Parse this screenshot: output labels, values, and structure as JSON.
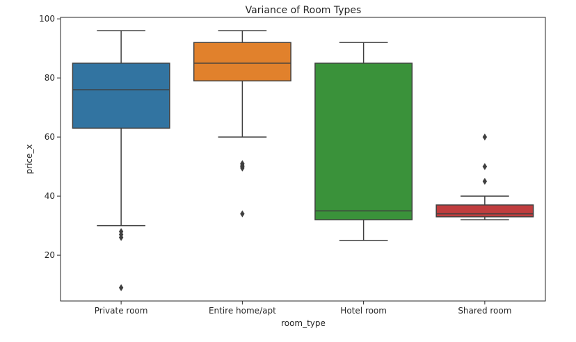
{
  "chart_data": {
    "type": "box",
    "title": "Variance of Room Types",
    "xlabel": "room_type",
    "ylabel": "price_x",
    "ylim": [
      4.5,
      100.5
    ],
    "yticks": [
      20,
      40,
      60,
      80,
      100
    ],
    "grid": false,
    "categories": [
      "Private room",
      "Entire home/apt",
      "Hotel room",
      "Shared room"
    ],
    "series": [
      {
        "category": "Private room",
        "color": "#3274a1",
        "whisker_low": 30,
        "q1": 63,
        "median": 76,
        "q3": 85,
        "whisker_high": 96,
        "outliers": [
          28,
          27,
          26,
          9
        ]
      },
      {
        "category": "Entire home/apt",
        "color": "#e1812c",
        "whisker_low": 60,
        "q1": 79,
        "median": 85,
        "q3": 92,
        "whisker_high": 96,
        "outliers": [
          51,
          50.5,
          50,
          49.5,
          34
        ]
      },
      {
        "category": "Hotel room",
        "color": "#3a923a",
        "whisker_low": 25,
        "q1": 32,
        "median": 35,
        "q3": 85,
        "whisker_high": 92,
        "outliers": []
      },
      {
        "category": "Shared room",
        "color": "#c03d3e",
        "whisker_low": 32,
        "q1": 33,
        "median": 34,
        "q3": 37,
        "whisker_high": 40,
        "outliers": [
          45,
          50,
          60
        ]
      }
    ]
  }
}
